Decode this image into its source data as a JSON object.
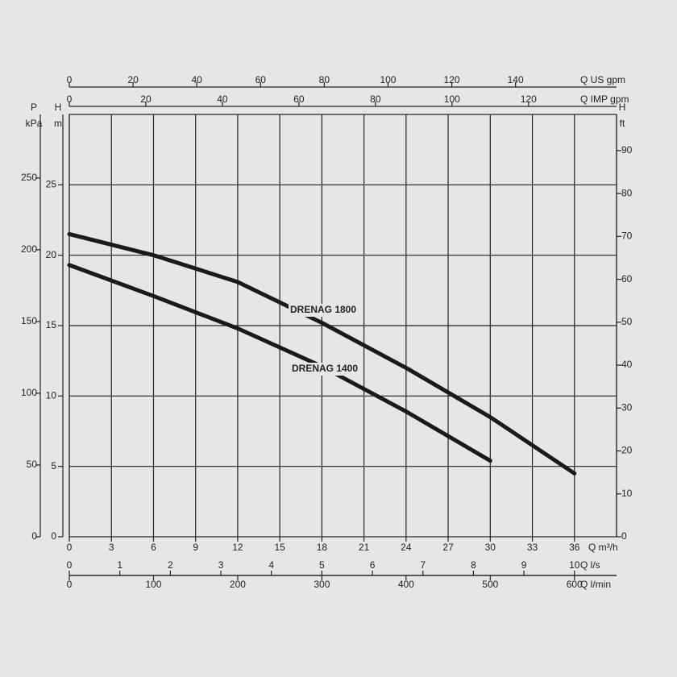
{
  "chart_data": {
    "type": "line",
    "x": [
      0,
      6,
      12,
      18,
      24,
      30,
      36
    ],
    "xlim": [
      0,
      39
    ],
    "xticks": [
      0,
      3,
      6,
      9,
      12,
      15,
      18,
      21,
      24,
      27,
      30,
      33,
      36
    ],
    "xlabel": "Q m³/h",
    "ylim": [
      0,
      30
    ],
    "yticks": [
      0,
      5,
      10,
      15,
      20,
      25
    ],
    "ylabel": [
      "H",
      "m"
    ],
    "grid": true,
    "series": [
      {
        "name": "DRENAG 1800",
        "color": "#1a1a1a",
        "values": [
          21.5,
          20.0,
          18.1,
          15.2,
          12.0,
          8.5,
          4.5
        ]
      },
      {
        "name": "DRENAG 1400",
        "color": "#1a1a1a",
        "values": [
          19.3,
          17.1,
          14.8,
          12.1,
          8.9,
          5.4,
          null
        ]
      }
    ],
    "axes": {
      "us_gpm": {
        "label": "Q US gpm",
        "lim": [
          0,
          171.7
        ],
        "ticks": [
          0,
          20,
          40,
          60,
          80,
          100,
          120,
          140
        ]
      },
      "imp_gpm": {
        "label": "Q IMP gpm",
        "lim": [
          0,
          143
        ],
        "ticks": [
          0,
          20,
          40,
          60,
          80,
          100,
          120
        ]
      },
      "l_s": {
        "label": "Q l/s",
        "lim": [
          0,
          10.833
        ],
        "ticks": [
          0,
          1,
          2,
          3,
          4,
          5,
          6,
          7,
          8,
          9,
          10
        ]
      },
      "l_min": {
        "label": "Q l/min",
        "lim": [
          0,
          650
        ],
        "ticks": [
          0,
          100,
          200,
          300,
          400,
          500,
          600
        ]
      },
      "kpa": {
        "label": [
          "P",
          "kPa"
        ],
        "lim": [
          0,
          294.3
        ],
        "ticks": [
          0,
          50,
          100,
          150,
          200,
          250
        ]
      },
      "ft": {
        "label": [
          "H",
          "ft"
        ],
        "lim": [
          0,
          98.43
        ],
        "ticks": [
          0,
          10,
          20,
          30,
          40,
          50,
          60,
          70,
          80,
          90
        ]
      }
    }
  }
}
